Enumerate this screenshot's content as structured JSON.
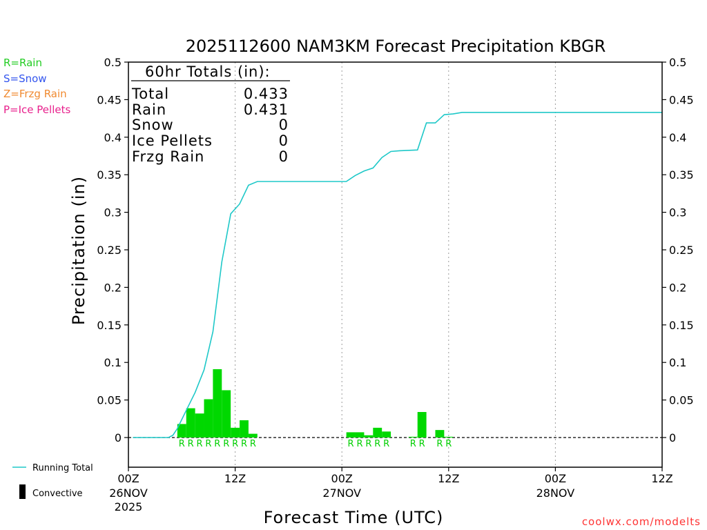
{
  "chart_data": {
    "type": "bar",
    "title": "2025112600 NAM3KM Forecast Precipitation KBGR",
    "xlabel": "Forecast Time (UTC)",
    "ylabel": "Precipitation (in)",
    "ylim": [
      0,
      0.5
    ],
    "yticks": [
      "0",
      "0.05",
      "0.1",
      "0.15",
      "0.2",
      "0.25",
      "0.3",
      "0.35",
      "0.4",
      "0.45",
      "0.5"
    ],
    "xlim_hours": [
      0,
      60
    ],
    "xticks": [
      {
        "hour": 0,
        "label": "00Z",
        "date": "26NOV",
        "year": "2025"
      },
      {
        "hour": 12,
        "label": "12Z",
        "date": "",
        "year": ""
      },
      {
        "hour": 24,
        "label": "00Z",
        "date": "27NOV",
        "year": ""
      },
      {
        "hour": 36,
        "label": "12Z",
        "date": "",
        "year": ""
      },
      {
        "hour": 48,
        "label": "00Z",
        "date": "28NOV",
        "year": ""
      },
      {
        "hour": 60,
        "label": "12Z",
        "date": "",
        "year": ""
      }
    ],
    "series": [
      {
        "name": "Hourly Precipitation (Convective)",
        "type": "bar",
        "color": "#00d800",
        "bars": [
          {
            "hour": 6,
            "value": 0.018,
            "ptype": "R"
          },
          {
            "hour": 7,
            "value": 0.039,
            "ptype": "R"
          },
          {
            "hour": 8,
            "value": 0.032,
            "ptype": "R"
          },
          {
            "hour": 9,
            "value": 0.051,
            "ptype": "R"
          },
          {
            "hour": 10,
            "value": 0.091,
            "ptype": "R"
          },
          {
            "hour": 11,
            "value": 0.063,
            "ptype": "R"
          },
          {
            "hour": 12,
            "value": 0.013,
            "ptype": "R"
          },
          {
            "hour": 13,
            "value": 0.023,
            "ptype": "R"
          },
          {
            "hour": 14,
            "value": 0.005,
            "ptype": "R"
          },
          {
            "hour": 25,
            "value": 0.007,
            "ptype": "R"
          },
          {
            "hour": 26,
            "value": 0.007,
            "ptype": "R"
          },
          {
            "hour": 27,
            "value": 0.003,
            "ptype": "R"
          },
          {
            "hour": 28,
            "value": 0.013,
            "ptype": "R"
          },
          {
            "hour": 29,
            "value": 0.008,
            "ptype": "R"
          },
          {
            "hour": 32,
            "value": 0.001,
            "ptype": "R"
          },
          {
            "hour": 33,
            "value": 0.034,
            "ptype": "R"
          },
          {
            "hour": 35,
            "value": 0.01,
            "ptype": "R"
          },
          {
            "hour": 36,
            "value": 0.001,
            "ptype": "R"
          }
        ]
      },
      {
        "name": "Running Total",
        "type": "line",
        "color": "#1ec8c8",
        "points": [
          [
            0.5,
            0
          ],
          [
            4.5,
            0
          ],
          [
            5,
            0.003
          ],
          [
            5.5,
            0.012
          ],
          [
            6.5,
            0.036
          ],
          [
            7.5,
            0.06
          ],
          [
            8.5,
            0.09
          ],
          [
            9.5,
            0.141
          ],
          [
            10.5,
            0.234
          ],
          [
            11.5,
            0.298
          ],
          [
            12.5,
            0.311
          ],
          [
            13.5,
            0.336
          ],
          [
            14.5,
            0.341
          ],
          [
            24.5,
            0.341
          ],
          [
            25.5,
            0.349
          ],
          [
            26.5,
            0.355
          ],
          [
            27.5,
            0.359
          ],
          [
            28.5,
            0.373
          ],
          [
            29.5,
            0.381
          ],
          [
            30.5,
            0.382
          ],
          [
            32.5,
            0.383
          ],
          [
            33.5,
            0.419
          ],
          [
            34.5,
            0.419
          ],
          [
            35.5,
            0.43
          ],
          [
            36.5,
            0.431
          ],
          [
            37.5,
            0.433
          ],
          [
            60,
            0.433
          ]
        ]
      }
    ]
  },
  "totals_box": {
    "heading": "60hr Totals (in):",
    "rows": [
      {
        "label": "Total",
        "value": "0.433"
      },
      {
        "label": "Rain",
        "value": "0.431"
      },
      {
        "label": "Snow",
        "value": "0"
      },
      {
        "label": "Ice Pellets",
        "value": "0"
      },
      {
        "label": "Frzg Rain",
        "value": "0"
      }
    ]
  },
  "ptype_legend": [
    {
      "text": "R=Rain",
      "color": "#22cc22"
    },
    {
      "text": "S=Snow",
      "color": "#3355ee"
    },
    {
      "text": "Z=Frzg Rain",
      "color": "#f08a30"
    },
    {
      "text": "P=Ice Pellets",
      "color": "#e8208c"
    }
  ],
  "bottom_legend": {
    "running_total": "Running Total",
    "convective": "Convective"
  },
  "credit": "coolwx.com/modelts"
}
